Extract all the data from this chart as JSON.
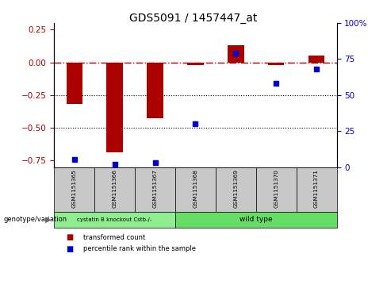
{
  "title": "GDS5091 / 1457447_at",
  "samples": [
    "GSM1151365",
    "GSM1151366",
    "GSM1151367",
    "GSM1151368",
    "GSM1151369",
    "GSM1151370",
    "GSM1151371"
  ],
  "transformed_count": [
    -0.32,
    -0.69,
    -0.43,
    -0.02,
    0.13,
    -0.02,
    0.05
  ],
  "percentile_rank": [
    5,
    2,
    3,
    30,
    79,
    58,
    68
  ],
  "ylim_left": [
    -0.8,
    0.3
  ],
  "ylim_right": [
    0,
    100
  ],
  "yticks_left": [
    0.25,
    0.0,
    -0.25,
    -0.5,
    -0.75
  ],
  "yticks_right": [
    100,
    75,
    50,
    25,
    0
  ],
  "group1_label": "cystatin B knockout Cstb-/-",
  "group2_label": "wild type",
  "group1_indices": [
    0,
    1,
    2
  ],
  "group2_indices": [
    3,
    4,
    5,
    6
  ],
  "group1_color": "#90EE90",
  "group2_color": "#66DD66",
  "bar_color": "#AA0000",
  "dot_color": "#0000CC",
  "bar_width": 0.4,
  "legend_label_bar": "transformed count",
  "legend_label_dot": "percentile rank within the sample",
  "genotype_label": "genotype/variation",
  "hline_color": "#AA0000",
  "dotted_line_color": "black",
  "background_color": "white",
  "tick_label_color_left": "#AA0000",
  "tick_label_color_right": "#0000CC",
  "cell_color": "#C8C8C8"
}
